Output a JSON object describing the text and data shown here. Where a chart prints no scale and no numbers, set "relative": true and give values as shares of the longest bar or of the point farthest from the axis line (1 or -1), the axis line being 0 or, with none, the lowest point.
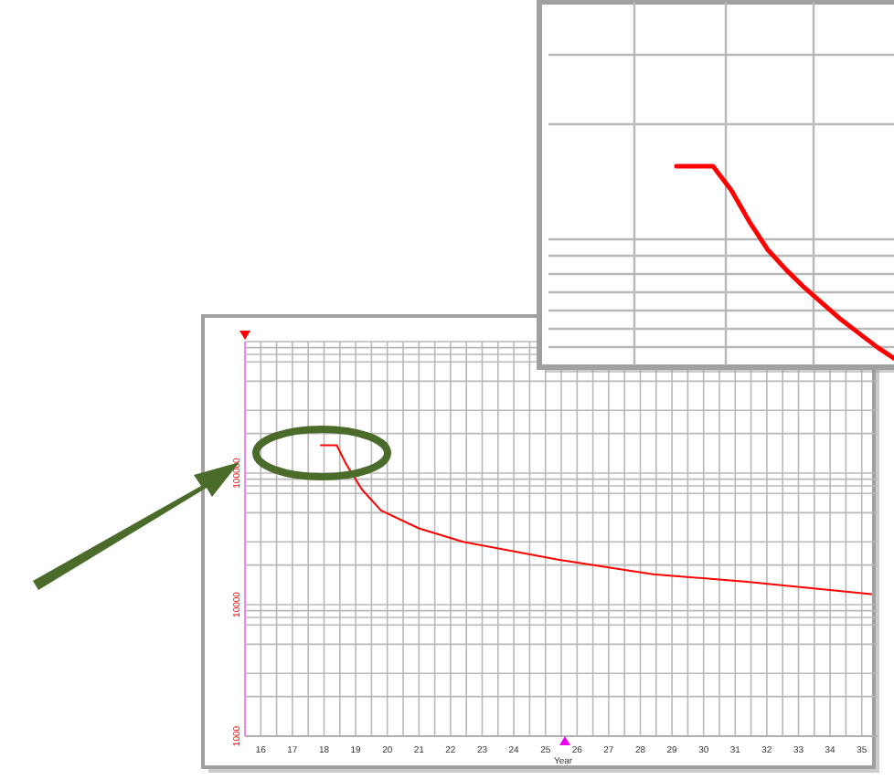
{
  "chart_data": [
    {
      "type": "line",
      "xlabel": "Year",
      "log": "y",
      "grid": true,
      "marker": "none",
      "line_style": "solid",
      "xlim": [
        15.5,
        35.5
      ],
      "ylim": [
        1000,
        1000000
      ],
      "xticks": [
        16,
        17,
        18,
        19,
        20,
        21,
        22,
        23,
        24,
        25,
        26,
        27,
        28,
        29,
        30,
        31,
        32,
        33,
        34,
        35,
        {
          "value": 16.5,
          "label": null
        },
        {
          "value": 17.5,
          "label": null
        },
        {
          "value": 18.5,
          "label": null
        },
        {
          "value": 19.5,
          "label": null
        },
        {
          "value": 20.5,
          "label": null
        },
        {
          "value": 21.5,
          "label": null
        },
        {
          "value": 22.5,
          "label": null
        },
        {
          "value": 23.5,
          "label": null
        },
        {
          "value": 24.5,
          "label": null
        },
        {
          "value": 25.5,
          "label": null
        },
        {
          "value": 26.5,
          "label": null
        },
        {
          "value": 27.5,
          "label": null
        },
        {
          "value": 28.5,
          "label": null
        },
        {
          "value": 29.5,
          "label": null
        },
        {
          "value": 30.5,
          "label": null
        },
        {
          "value": 31.5,
          "label": null
        },
        {
          "value": 32.5,
          "label": null
        },
        {
          "value": 33.5,
          "label": null
        },
        {
          "value": 34.5,
          "label": null
        }
      ],
      "yticks": [
        1000,
        {
          "value": 2000,
          "label": null
        },
        {
          "value": 3000,
          "label": null
        },
        {
          "value": 5000,
          "label": null
        },
        {
          "value": 7000,
          "label": null
        },
        {
          "value": 8000,
          "label": null
        },
        {
          "value": 9000,
          "label": null
        },
        10000,
        {
          "value": 20000,
          "label": null
        },
        {
          "value": 30000,
          "label": null
        },
        {
          "value": 50000,
          "label": null
        },
        {
          "value": 70000,
          "label": null
        },
        {
          "value": 80000,
          "label": null
        },
        {
          "value": 90000,
          "label": null
        },
        100000,
        {
          "value": 200000,
          "label": null
        },
        {
          "value": 300000,
          "label": null
        },
        {
          "value": 500000,
          "label": null
        },
        {
          "value": 700000,
          "label": null
        },
        {
          "value": 800000,
          "label": null
        },
        {
          "value": 900000,
          "label": null
        },
        {
          "value": 1000000,
          "label": null
        }
      ],
      "series": [
        {
          "color": "#ff0000",
          "x": [
            17.9,
            18.4,
            18.7,
            19.2,
            19.8,
            21.0,
            22.4,
            25.4,
            28.4,
            31.3,
            35.3
          ],
          "values": [
            163000,
            163000,
            117000,
            75000,
            52000,
            38000,
            30000,
            22000,
            17000,
            15000,
            12000
          ]
        }
      ]
    },
    {
      "type": "line",
      "relative": true,
      "grid": true,
      "marker": "none",
      "line_style": "solid",
      "categories": [
        null,
        null,
        null,
        null,
        null,
        null,
        null,
        null,
        null,
        null,
        null,
        null,
        null,
        null,
        null,
        null,
        null,
        null,
        null,
        null
      ],
      "series": [
        {
          "color": "#ff0000",
          "values": [
            null,
            null,
            null,
            null,
            null,
            null,
            null,
            1,
            1,
            1,
            0.88,
            0.72,
            0.58,
            0.48,
            0.39,
            0.31,
            0.23,
            0.16,
            0.09,
            0.03
          ]
        }
      ]
    }
  ]
}
